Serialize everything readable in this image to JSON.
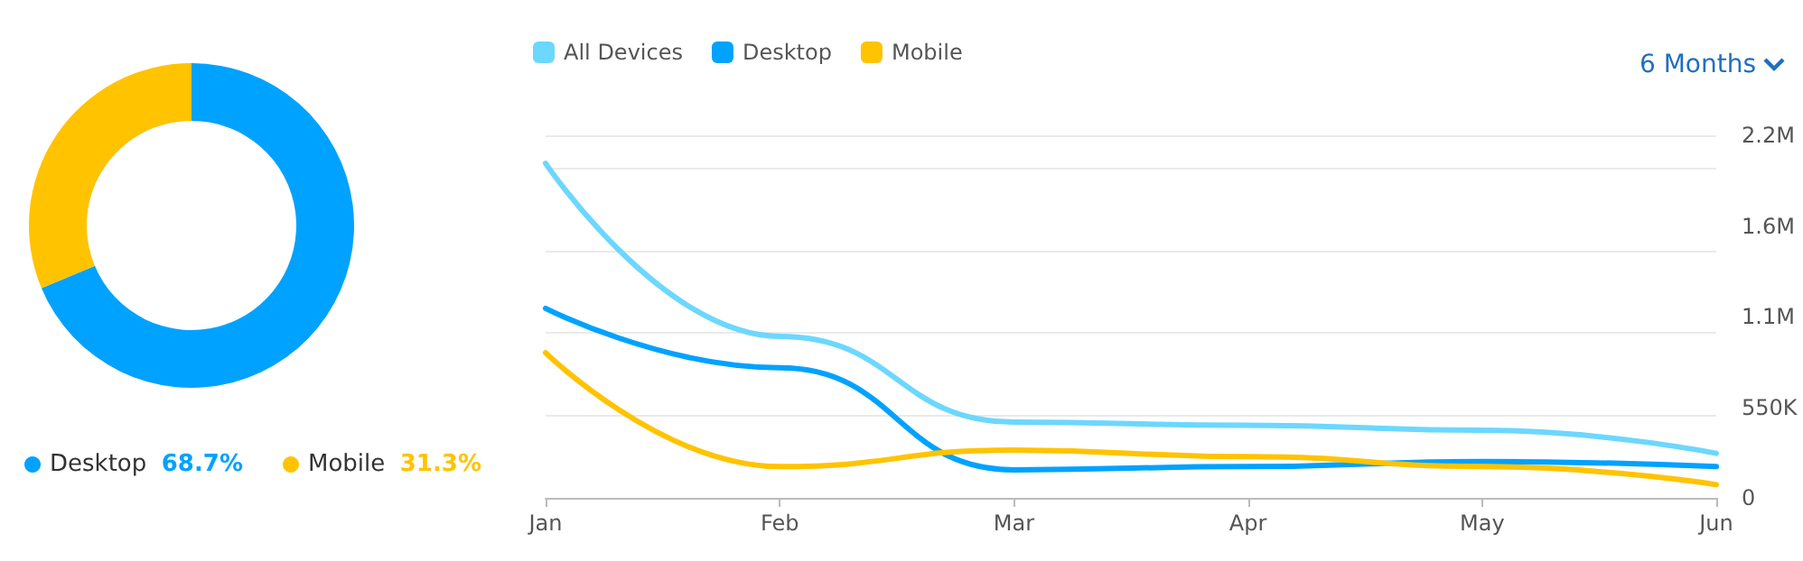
{
  "chart_data": [
    {
      "type": "donut",
      "categories": [
        "Desktop",
        "Mobile"
      ],
      "values": [
        68.7,
        31.3
      ],
      "colors": [
        "#00a2ff",
        "#ffc300"
      ],
      "value_labels": [
        "68.7%",
        "31.3%"
      ],
      "legend": "bottom"
    },
    {
      "type": "line",
      "categories": [
        "Jan",
        "Feb",
        "Mar",
        "Apr",
        "May",
        "Jun"
      ],
      "series": [
        {
          "name": "All Devices",
          "color": "#6cd7ff",
          "values": [
            2030000,
            980000,
            460000,
            440000,
            410000,
            270000
          ]
        },
        {
          "name": "Desktop",
          "color": "#00a2ff",
          "values": [
            1150000,
            790000,
            170000,
            190000,
            220000,
            190000
          ]
        },
        {
          "name": "Mobile",
          "color": "#ffc300",
          "values": [
            880000,
            190000,
            290000,
            250000,
            190000,
            80000
          ]
        }
      ],
      "ylim": [
        0,
        2200000
      ],
      "yticks": [
        0,
        {
          "value": 550000,
          "label": "550K"
        },
        {
          "value": 1100000,
          "label": "1.1M"
        },
        {
          "value": 1650000,
          "label": "1.6M"
        },
        {
          "value": 2200000,
          "label": "2.2M"
        }
      ],
      "grid": "y",
      "legend": "top left",
      "marker": "none",
      "line_style": "solid",
      "annotations": [
        "6 Months"
      ]
    }
  ]
}
